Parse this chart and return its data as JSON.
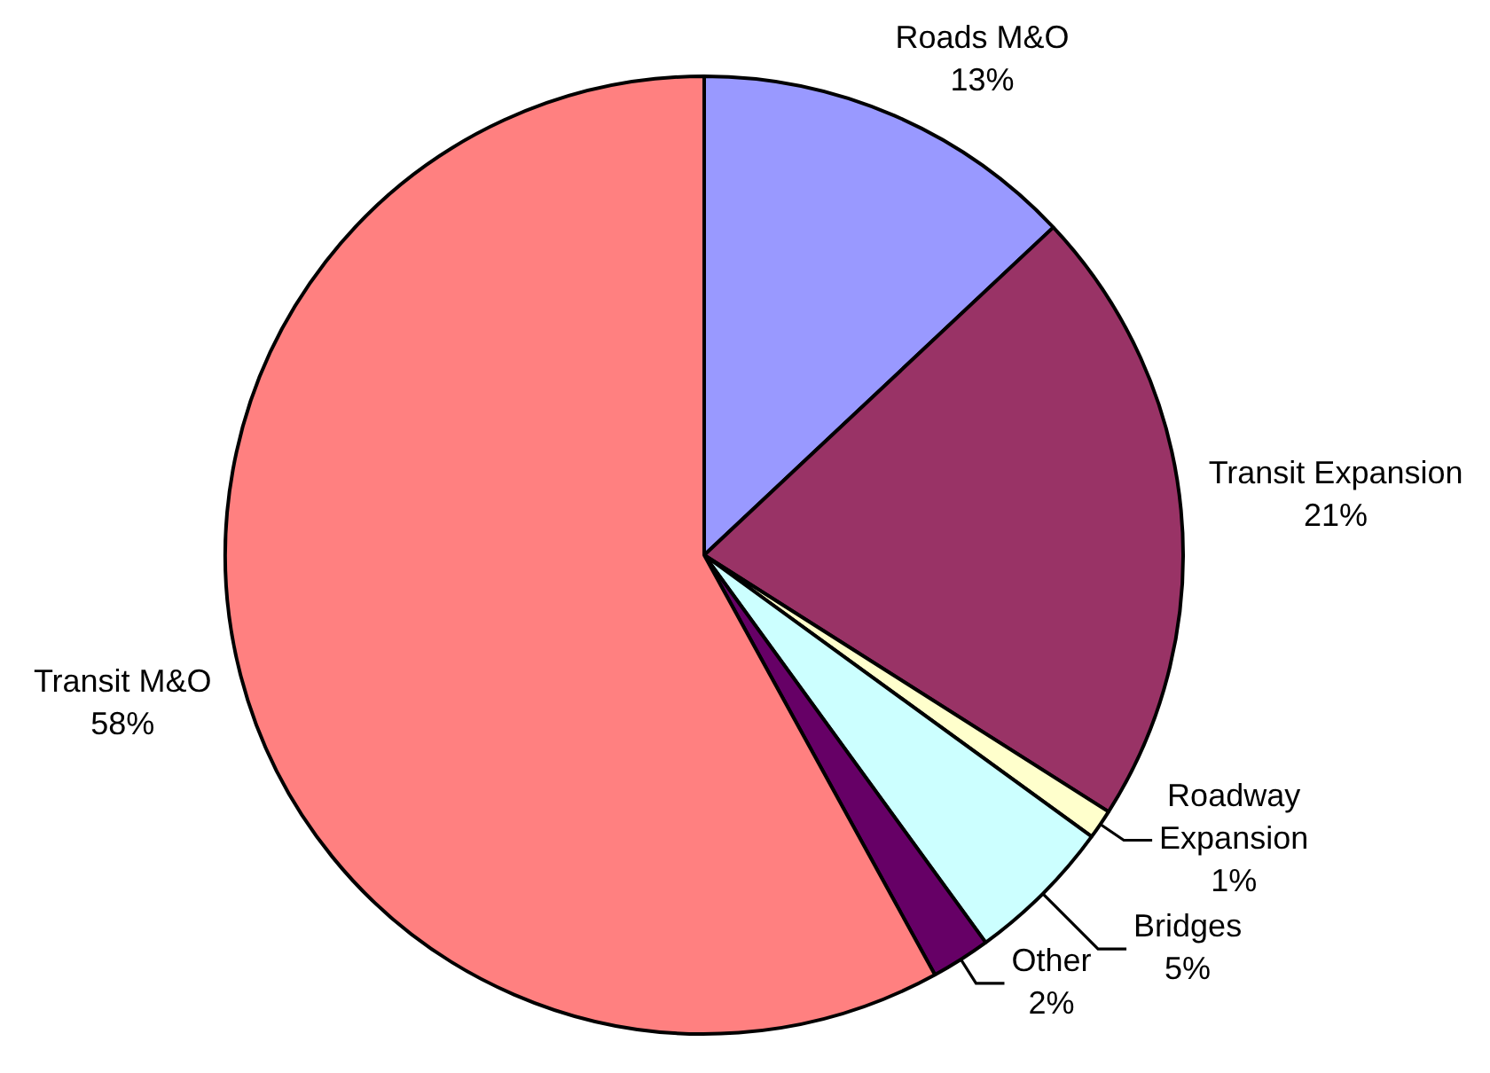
{
  "chart_data": {
    "type": "pie",
    "categories": [
      "Roads M&O",
      "Transit Expansion",
      "Roadway Expansion",
      "Bridges",
      "Other",
      "Transit M&O"
    ],
    "values": [
      13,
      21,
      1,
      5,
      2,
      58
    ],
    "colors": [
      "#9999ff",
      "#993366",
      "#ffffcc",
      "#ccffff",
      "#660066",
      "#ff8080"
    ],
    "value_labels": [
      "13%",
      "21%",
      "1%",
      "5%",
      "2%",
      "58%"
    ]
  }
}
